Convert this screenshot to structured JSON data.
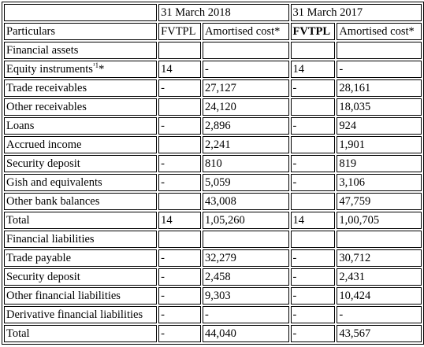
{
  "header": {
    "year_2018": "31 March 2018",
    "year_2017": "31 March 2017"
  },
  "columns": {
    "particulars": "Particulars",
    "fvtpl_2018": "FVTPL",
    "amortised_2018": "Amortised cost*",
    "fvtpl_2017": "FVTPL",
    "amortised_2017": "Amortised cost*"
  },
  "rows": [
    {
      "label": "Financial assets",
      "sup": "",
      "suffix": "",
      "f18": "",
      "a18": "",
      "f17": "",
      "a17": ""
    },
    {
      "label": "Equity instruments",
      "sup": "¹1",
      "suffix": "*",
      "f18": "14",
      "a18": "-",
      "f17": "14",
      "a17": "-"
    },
    {
      "label": "Trade receivables",
      "sup": "",
      "suffix": "",
      "f18": "-",
      "a18": "27,127",
      "f17": "-",
      "a17": "28,161"
    },
    {
      "label": "Other receivables",
      "sup": "",
      "suffix": "",
      "f18": "",
      "a18": "24,120",
      "f17": "",
      "a17": "18,035"
    },
    {
      "label": "Loans",
      "sup": "",
      "suffix": "",
      "f18": "-",
      "a18": "2,896",
      "f17": "-",
      "a17": "924"
    },
    {
      "label": "Accrued income",
      "sup": "",
      "suffix": "",
      "f18": "",
      "a18": "2,241",
      "f17": "",
      "a17": "1,901"
    },
    {
      "label": "Security deposit",
      "sup": "",
      "suffix": "",
      "f18": "-",
      "a18": "810",
      "f17": "-",
      "a17": "819"
    },
    {
      "label": "Gish and equivalents",
      "sup": "",
      "suffix": "",
      "f18": "-",
      "a18": "5,059",
      "f17": "-",
      "a17": "3,106"
    },
    {
      "label": "Other bank balances",
      "sup": "",
      "suffix": "",
      "f18": "",
      "a18": "43,008",
      "f17": "",
      "a17": "47,759"
    },
    {
      "label": "Total",
      "sup": "",
      "suffix": "",
      "f18": "14",
      "a18": "1,05,260",
      "f17": "14",
      "a17": "1,00,705"
    },
    {
      "label": "Financial liabilities",
      "sup": "",
      "suffix": "",
      "f18": "",
      "a18": "",
      "f17": "",
      "a17": ""
    },
    {
      "label": "Trade payable",
      "sup": "",
      "suffix": "",
      "f18": "-",
      "a18": "32,279",
      "f17": "-",
      "a17": "30,712"
    },
    {
      "label": "Security deposit",
      "sup": "",
      "suffix": "",
      "f18": "-",
      "a18": "2,458",
      "f17": "-",
      "a17": "2,431"
    },
    {
      "label": "Other financial liabilities",
      "sup": "",
      "suffix": "",
      "f18": "-",
      "a18": "9,303",
      "f17": "-",
      "a17": "10,424"
    },
    {
      "label": "Derivative financial liabilities",
      "sup": "",
      "suffix": "",
      "f18": "-",
      "a18": "-",
      "f17": "-",
      "a17": "-"
    },
    {
      "label": "Total",
      "sup": "",
      "suffix": "",
      "f18": "-",
      "a18": "44,040",
      "f17": "-",
      "a17": "43,567"
    }
  ]
}
